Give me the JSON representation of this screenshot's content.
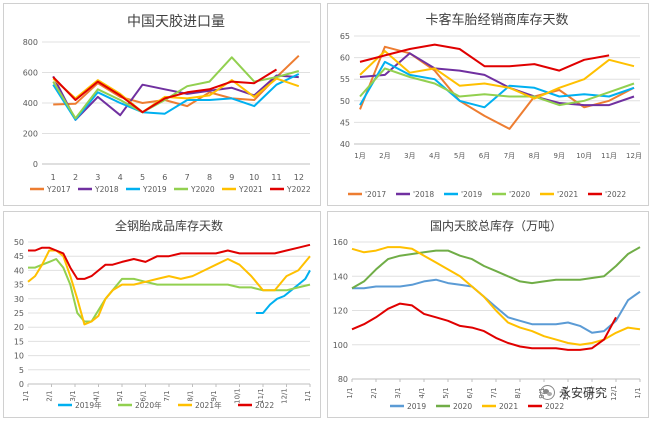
{
  "chart_data": [
    {
      "type": "line",
      "title": "中国天胶进口量",
      "categories": [
        "1",
        "2",
        "3",
        "4",
        "5",
        "6",
        "7",
        "8",
        "9",
        "10",
        "11",
        "12"
      ],
      "ylim": [
        0,
        800
      ],
      "yticks": [
        0,
        200,
        400,
        600,
        800
      ],
      "grid": true,
      "legend_position": "bottom",
      "series": [
        {
          "name": "Y2017",
          "color": "#ED7D31",
          "values": [
            390,
            395,
            530,
            440,
            400,
            420,
            380,
            470,
            430,
            420,
            570,
            710
          ]
        },
        {
          "name": "Y2018",
          "color": "#7030A0",
          "values": [
            575,
            290,
            440,
            320,
            520,
            490,
            460,
            480,
            500,
            450,
            580,
            570
          ]
        },
        {
          "name": "Y2019",
          "color": "#00B0F0",
          "values": [
            520,
            290,
            470,
            400,
            340,
            330,
            420,
            420,
            430,
            380,
            520,
            590
          ]
        },
        {
          "name": "Y2020",
          "color": "#92D050",
          "values": [
            540,
            300,
            490,
            420,
            340,
            420,
            510,
            540,
            700,
            540,
            570,
            610
          ]
        },
        {
          "name": "Y2021",
          "color": "#FFC000",
          "values": [
            560,
            430,
            550,
            460,
            340,
            440,
            430,
            450,
            550,
            440,
            560,
            510
          ]
        },
        {
          "name": "Y2022",
          "color": "#E00000",
          "values": [
            570,
            420,
            540,
            450,
            340,
            430,
            470,
            490,
            540,
            530,
            620,
            null
          ]
        }
      ]
    },
    {
      "type": "line",
      "title": "卡客车胎经销商库存天数",
      "categories": [
        "1月",
        "2月",
        "3月",
        "4月",
        "5月",
        "6月",
        "7月",
        "8月",
        "9月",
        "10月",
        "11月",
        "12月"
      ],
      "ylim": [
        40,
        65
      ],
      "yticks": [
        40,
        45,
        50,
        55,
        60,
        65
      ],
      "grid": true,
      "legend_position": "bottom",
      "series": [
        {
          "name": "'2017",
          "color": "#ED7D31",
          "values": [
            48,
            62.5,
            61,
            57,
            50,
            46.5,
            43.5,
            51,
            52.5,
            48.5,
            50,
            53
          ]
        },
        {
          "name": "'2018",
          "color": "#7030A0",
          "values": [
            55.5,
            56,
            61,
            57.5,
            57,
            56,
            53,
            51,
            49.5,
            49,
            49,
            51
          ]
        },
        {
          "name": "'2019",
          "color": "#00B0F0",
          "values": [
            49,
            59,
            56,
            55,
            50,
            48.5,
            53.5,
            53,
            51,
            51.5,
            51,
            53
          ]
        },
        {
          "name": "'2020",
          "color": "#92D050",
          "values": [
            51,
            57.5,
            55.5,
            54,
            51,
            51.5,
            51,
            51,
            49,
            50,
            52,
            54
          ]
        },
        {
          "name": "'2021",
          "color": "#FFC000",
          "values": [
            56,
            61.5,
            56.5,
            57.5,
            53.5,
            54,
            53,
            50.5,
            53,
            55,
            59.5,
            58
          ]
        },
        {
          "name": "'2022",
          "color": "#E00000",
          "values": [
            59,
            60.5,
            62,
            63,
            62,
            58,
            58,
            58.5,
            57,
            59.5,
            60.5,
            null
          ]
        }
      ]
    },
    {
      "type": "line",
      "title": "全钢胎成品库存天数",
      "xticks": [
        "1/1",
        "2/1",
        "3/1",
        "4/1",
        "5/1",
        "6/1",
        "7/1",
        "8/1",
        "9/1",
        "10/1",
        "11/1",
        "12/1",
        "1/1"
      ],
      "ylim": [
        0,
        50
      ],
      "yticks": [
        0,
        5,
        10,
        15,
        20,
        25,
        30,
        35,
        40,
        45,
        50
      ],
      "grid": true,
      "legend_position": "bottom",
      "series": [
        {
          "name": "2019年",
          "color": "#00B0F0",
          "x": [
            9.7,
            10.0,
            10.3,
            10.6,
            10.9,
            11.2,
            11.5,
            11.8,
            12.0
          ],
          "y": [
            25,
            25,
            28,
            30,
            31,
            33,
            35,
            37,
            40
          ]
        },
        {
          "name": "2020年",
          "color": "#92D050",
          "x": [
            0,
            0.3,
            0.6,
            0.9,
            1.2,
            1.5,
            1.8,
            2.1,
            2.4,
            2.7,
            3.0,
            3.3,
            3.6,
            4.0,
            4.5,
            5.0,
            5.5,
            6.0,
            6.5,
            7.0,
            7.5,
            8.0,
            8.5,
            9.0,
            9.5,
            10.0,
            10.5,
            11.0,
            11.5,
            12.0
          ],
          "y": [
            41,
            41,
            42,
            43,
            44,
            41,
            35,
            25,
            22,
            22,
            26,
            30,
            33,
            37,
            37,
            36,
            35,
            35,
            35,
            35,
            35,
            35,
            35,
            34,
            34,
            33,
            33,
            33,
            34,
            35
          ]
        },
        {
          "name": "2021年",
          "color": "#FFC000",
          "x": [
            0,
            0.3,
            0.6,
            0.9,
            1.2,
            1.5,
            1.8,
            2.1,
            2.4,
            2.7,
            3.0,
            3.3,
            3.6,
            4.0,
            4.5,
            5.0,
            5.5,
            6.0,
            6.5,
            7.0,
            7.5,
            8.0,
            8.5,
            9.0,
            9.5,
            10.0,
            10.5,
            11.0,
            11.5,
            12.0
          ],
          "y": [
            36,
            38,
            42,
            47,
            47,
            45,
            38,
            30,
            21,
            22,
            24,
            30,
            33,
            35,
            35,
            36,
            37,
            38,
            37,
            38,
            40,
            42,
            44,
            42,
            38,
            33,
            33,
            38,
            40,
            45
          ]
        },
        {
          "name": "2022",
          "color": "#E00000",
          "x": [
            0,
            0.3,
            0.6,
            0.9,
            1.2,
            1.5,
            1.8,
            2.1,
            2.4,
            2.7,
            3.0,
            3.3,
            3.6,
            4.0,
            4.5,
            5.0,
            5.5,
            6.0,
            6.5,
            7.0,
            7.5,
            8.0,
            8.5,
            9.0,
            9.5,
            10.0,
            10.5,
            11.0,
            11.5,
            12.0
          ],
          "y": [
            47,
            47,
            48,
            48,
            47,
            46,
            41,
            37,
            37,
            38,
            40,
            42,
            42,
            43,
            44,
            43,
            45,
            45,
            46,
            46,
            46,
            46,
            47,
            46,
            46,
            46,
            46,
            47,
            48,
            49
          ]
        }
      ]
    },
    {
      "type": "line",
      "title": "国内天胶总库存（万吨）",
      "xticks": [
        "1/1",
        "2/1",
        "3/1",
        "4/1",
        "5/1",
        "6/1",
        "7/1",
        "8/1",
        "9/1",
        "10/1",
        "11/1",
        "12/1",
        "1/1"
      ],
      "ylim": [
        80,
        160
      ],
      "yticks": [
        80,
        100,
        120,
        140,
        160
      ],
      "grid": true,
      "legend_position": "bottom",
      "series": [
        {
          "name": "2019",
          "color": "#5B9BD5",
          "x": [
            0,
            0.5,
            1.0,
            1.5,
            2.0,
            2.5,
            3.0,
            3.5,
            4.0,
            4.5,
            5.0,
            5.5,
            6.0,
            6.5,
            7.0,
            7.5,
            8.0,
            8.5,
            9.0,
            9.5,
            10.0,
            10.5,
            11.0,
            11.5,
            12.0
          ],
          "y": [
            133,
            133,
            134,
            134,
            134,
            135,
            137,
            138,
            136,
            135,
            134,
            128,
            122,
            116,
            114,
            112,
            112,
            112,
            113,
            111,
            107,
            108,
            114,
            126,
            131
          ]
        },
        {
          "name": "2020",
          "color": "#70AD47",
          "x": [
            0,
            0.5,
            1.0,
            1.5,
            2.0,
            2.5,
            3.0,
            3.5,
            4.0,
            4.5,
            5.0,
            5.5,
            6.0,
            6.5,
            7.0,
            7.5,
            8.0,
            8.5,
            9.0,
            9.5,
            10.0,
            10.5,
            11.0,
            11.5,
            12.0
          ],
          "y": [
            133,
            137,
            144,
            150,
            152,
            153,
            154,
            155,
            155,
            152,
            150,
            146,
            143,
            140,
            137,
            136,
            137,
            138,
            138,
            138,
            139,
            140,
            146,
            153,
            157
          ]
        },
        {
          "name": "2021",
          "color": "#FFC000",
          "x": [
            0,
            0.5,
            1.0,
            1.5,
            2.0,
            2.5,
            3.0,
            3.5,
            4.0,
            4.5,
            5.0,
            5.5,
            6.0,
            6.5,
            7.0,
            7.5,
            8.0,
            8.5,
            9.0,
            9.5,
            10.0,
            10.5,
            11.0,
            11.5,
            12.0
          ],
          "y": [
            156,
            154,
            155,
            157,
            157,
            156,
            152,
            148,
            144,
            140,
            134,
            128,
            120,
            113,
            110,
            108,
            105,
            103,
            101,
            100,
            101,
            103,
            107,
            110,
            109
          ]
        },
        {
          "name": "2022",
          "color": "#E00000",
          "x": [
            0,
            0.5,
            1.0,
            1.5,
            2.0,
            2.5,
            3.0,
            3.5,
            4.0,
            4.5,
            5.0,
            5.5,
            6.0,
            6.5,
            7.0,
            7.5,
            8.0,
            8.5,
            9.0,
            9.5,
            10.0,
            10.5,
            11.0
          ],
          "y": [
            109,
            112,
            116,
            121,
            124,
            123,
            118,
            116,
            114,
            111,
            110,
            108,
            104,
            101,
            99,
            98,
            98,
            98,
            97,
            97,
            98,
            103,
            116
          ]
        }
      ]
    }
  ],
  "watermark": {
    "text": "永安研究",
    "icon": "wechat-icon"
  }
}
